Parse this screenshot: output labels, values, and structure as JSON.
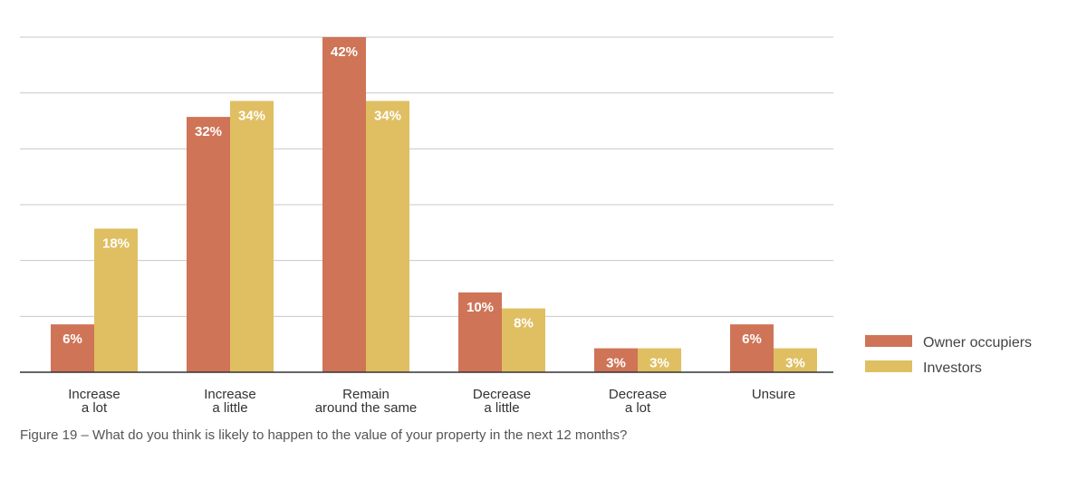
{
  "chart_data": {
    "type": "bar",
    "categories": [
      [
        "Increase",
        "a lot"
      ],
      [
        "Increase",
        "a little"
      ],
      [
        "Remain",
        "around the same"
      ],
      [
        "Decrease",
        "a little"
      ],
      [
        "Decrease",
        "a lot"
      ],
      [
        "Unsure"
      ]
    ],
    "series": [
      {
        "name": "Owner occupiers",
        "color": "#cf7457",
        "values": [
          6,
          32,
          42,
          10,
          3,
          6
        ]
      },
      {
        "name": "Investors",
        "color": "#dfbf62",
        "values": [
          18,
          34,
          34,
          8,
          3,
          3
        ]
      }
    ],
    "value_suffix": "%",
    "ylim": [
      0,
      42
    ],
    "grid": true,
    "legend_position": "bottom-right"
  },
  "caption": "Figure 19 – What do you think is likely to happen to the value of your property in the next 12 months?",
  "colors": {
    "gridline": "#c8c8c8",
    "axis": "#333333"
  }
}
